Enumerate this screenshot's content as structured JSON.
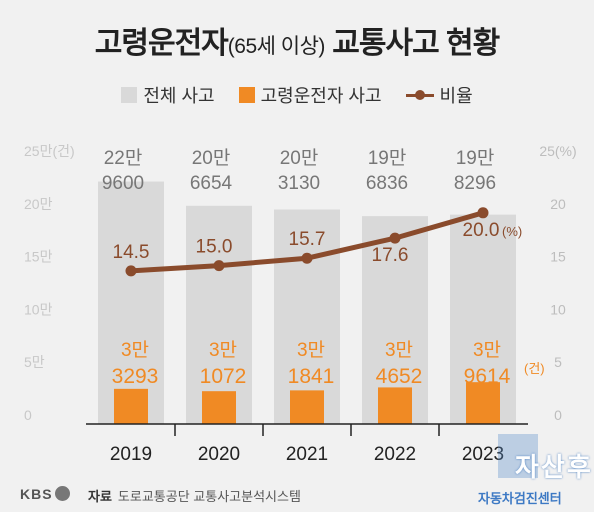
{
  "title_main": "고령운전자",
  "title_paren": "(65세 이상)",
  "title_rest": "교통사고 현황",
  "legend": {
    "total": "전체 사고",
    "elderly": "고령운전자 사고",
    "ratio": "비율"
  },
  "colors": {
    "total_bar": "#d9d9d9",
    "elderly_bar": "#f08a24",
    "ratio_line": "#8a4b2c",
    "left_tick": "#c8c8c8",
    "right_tick": "#bdbdbd"
  },
  "chart_data": {
    "type": "bar",
    "categories": [
      "2019",
      "2020",
      "2021",
      "2022",
      "2023"
    ],
    "series": [
      {
        "name": "전체 사고",
        "values": [
          229600,
          206654,
          203130,
          196836,
          198296
        ],
        "labels": [
          [
            "22만",
            "9600"
          ],
          [
            "20만",
            "6654"
          ],
          [
            "20만",
            "3130"
          ],
          [
            "19만",
            "6836"
          ],
          [
            "19만",
            "8296"
          ]
        ]
      },
      {
        "name": "고령운전자 사고",
        "values": [
          33293,
          31072,
          31841,
          34652,
          39614
        ],
        "labels": [
          [
            "3만",
            "3293"
          ],
          [
            "3만",
            "1072"
          ],
          [
            "3만",
            "1841"
          ],
          [
            "3만",
            "4652"
          ],
          [
            "3만",
            "9614"
          ]
        ],
        "last_unit": "(건)"
      },
      {
        "name": "비율",
        "type": "line",
        "values": [
          14.5,
          15.0,
          15.7,
          17.6,
          20.0
        ],
        "labels": [
          "14.5",
          "15.0",
          "15.7",
          "17.6",
          "20.0"
        ],
        "last_unit": "(%)"
      }
    ],
    "left_axis": {
      "min": 0,
      "max": 250000,
      "ticks": [
        "0",
        "5만",
        "10만",
        "15만",
        "20만",
        "25만(건)"
      ]
    },
    "right_axis": {
      "min": 0,
      "max": 25,
      "ticks": [
        "0",
        "5",
        "10",
        "15",
        "20",
        "25(%)"
      ]
    }
  },
  "footer": {
    "brand": "KBS",
    "source_label": "자료",
    "source_text": "도로교통공단 교통사고분석시스템",
    "watermark": "자산후",
    "watermark_sub": "자동차검진센터"
  }
}
